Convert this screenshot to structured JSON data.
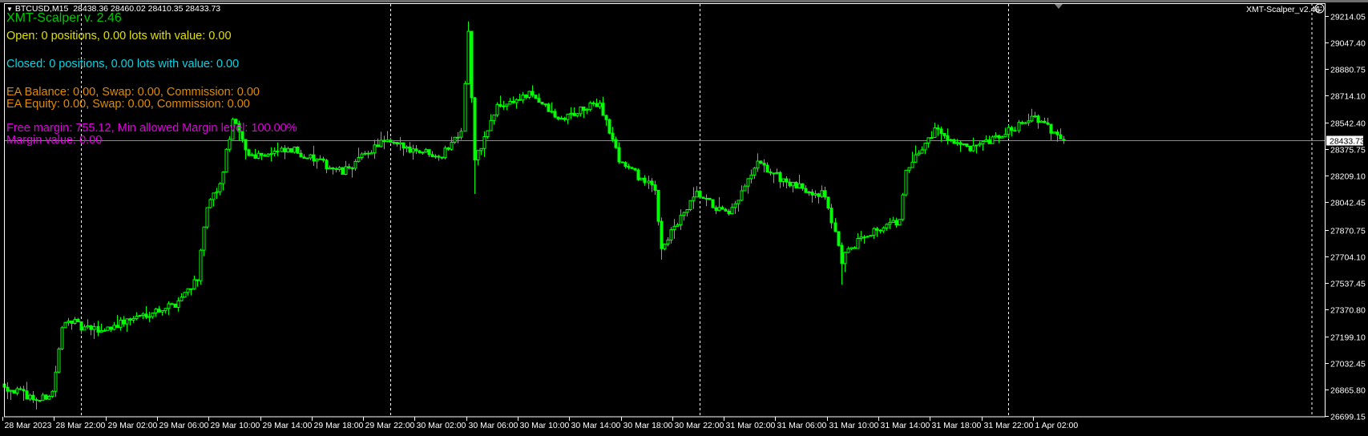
{
  "header": {
    "symbol": "BTCUSD,M15",
    "ohlc": "28438.36 28460.02 28410.35 28433.73",
    "menu_icon": "triangle-down-icon"
  },
  "overlay": {
    "title": "XMT-Scalper v. 2.46",
    "open_line": "Open: 0 positions, 0.00 lots with value: 0.00",
    "closed_line": "Closed: 0 positions, 0.00 lots with value: 0.00",
    "balance_line": "EA Balance: 0.00, Swap: 0.00, Commission: 0.00",
    "equity_line": "EA Equity: 0.00, Swap: 0.00, Commission: 0.00",
    "free_margin_line": "Free margin: 755.12, Min allowed Margin level: 100.00%",
    "margin_value_line": "Margin value: 0.00"
  },
  "expert": {
    "name": "XMT-Scalper_v2.46",
    "status_icon": "smiley-icon"
  },
  "colors": {
    "background": "#000000",
    "candles": "#00ff00",
    "title": "#00c800",
    "open": "#e0e000",
    "closed": "#00d8e8",
    "ea": "#e08c00",
    "margin": "#e000e0",
    "bid_line": "#8090a0"
  },
  "chart_data": {
    "type": "candlestick",
    "timeframe": "M15",
    "price_ticks": [
      "29214.05",
      "29047.40",
      "28880.75",
      "28714.10",
      "28542.40",
      "28375.75",
      "28209.10",
      "28042.45",
      "27870.75",
      "27704.10",
      "27537.45",
      "27370.80",
      "27199.10",
      "27032.45",
      "26865.80",
      "26699.15"
    ],
    "ylim": [
      26699.15,
      29214.05
    ],
    "current_price": "28433.73",
    "time_labels": [
      {
        "t": "2023-03-28 18:00",
        "label": "28 Mar 2023"
      },
      {
        "t": "2023-03-28 22:00",
        "label": "28 Mar 22:00"
      },
      {
        "t": "2023-03-29 02:00",
        "label": "29 Mar 02:00"
      },
      {
        "t": "2023-03-29 06:00",
        "label": "29 Mar 06:00"
      },
      {
        "t": "2023-03-29 10:00",
        "label": "29 Mar 10:00"
      },
      {
        "t": "2023-03-29 14:00",
        "label": "29 Mar 14:00"
      },
      {
        "t": "2023-03-29 18:00",
        "label": "29 Mar 18:00"
      },
      {
        "t": "2023-03-29 22:00",
        "label": "29 Mar 22:00"
      },
      {
        "t": "2023-03-30 02:00",
        "label": "30 Mar 02:00"
      },
      {
        "t": "2023-03-30 06:00",
        "label": "30 Mar 06:00"
      },
      {
        "t": "2023-03-30 10:00",
        "label": "30 Mar 10:00"
      },
      {
        "t": "2023-03-30 14:00",
        "label": "30 Mar 14:00"
      },
      {
        "t": "2023-03-30 18:00",
        "label": "30 Mar 18:00"
      },
      {
        "t": "2023-03-30 22:00",
        "label": "30 Mar 22:00"
      },
      {
        "t": "2023-03-31 02:00",
        "label": "31 Mar 02:00"
      },
      {
        "t": "2023-03-31 06:00",
        "label": "31 Mar 06:00"
      },
      {
        "t": "2023-03-31 10:00",
        "label": "31 Mar 10:00"
      },
      {
        "t": "2023-03-31 14:00",
        "label": "31 Mar 14:00"
      },
      {
        "t": "2023-03-31 18:00",
        "label": "31 Mar 18:00"
      },
      {
        "t": "2023-03-31 22:00",
        "label": "31 Mar 22:00"
      },
      {
        "t": "2023-04-01 02:00",
        "label": "1 Apr 02:00"
      }
    ],
    "period_separators": [
      "2023-03-29 00:00",
      "2023-03-30 00:00",
      "2023-03-31 00:00",
      "2023-04-01 00:00"
    ],
    "close_path": [
      [
        "2023-03-28 18:00",
        26900
      ],
      [
        "2023-03-28 18:15",
        26877
      ],
      [
        "2023-03-28 20:45",
        26795
      ],
      [
        "2023-03-28 21:45",
        26850
      ],
      [
        "2023-03-28 22:30",
        27240
      ],
      [
        "2023-03-28 23:00",
        27320
      ],
      [
        "2023-03-29 00:00",
        27250
      ],
      [
        "2023-03-29 01:30",
        27238
      ],
      [
        "2023-03-29 04:15",
        27321
      ],
      [
        "2023-03-29 07:15",
        27404
      ],
      [
        "2023-03-29 09:00",
        27569
      ],
      [
        "2023-03-29 09:45",
        28014
      ],
      [
        "2023-03-29 10:45",
        28146
      ],
      [
        "2023-03-29 11:45",
        28559
      ],
      [
        "2023-03-29 13:00",
        28339
      ],
      [
        "2023-03-29 16:30",
        28367
      ],
      [
        "2023-03-29 20:15",
        28229
      ],
      [
        "2023-03-29 23:15",
        28422
      ],
      [
        "2023-03-30 04:00",
        28339
      ],
      [
        "2023-03-30 05:30",
        28504
      ],
      [
        "2023-03-30 06:00",
        29109
      ],
      [
        "2023-03-30 06:30",
        28300
      ],
      [
        "2023-03-30 08:15",
        28642
      ],
      [
        "2023-03-30 11:00",
        28724
      ],
      [
        "2023-03-30 13:00",
        28559
      ],
      [
        "2023-03-30 16:15",
        28669
      ],
      [
        "2023-03-30 17:45",
        28312
      ],
      [
        "2023-03-30 20:30",
        28119
      ],
      [
        "2023-03-30 21:00",
        27761
      ],
      [
        "2023-03-30 23:45",
        28091
      ],
      [
        "2023-03-31 02:15",
        27954
      ],
      [
        "2023-03-31 04:30",
        28284
      ],
      [
        "2023-03-31 07:15",
        28146
      ],
      [
        "2023-03-31 09:45",
        28091
      ],
      [
        "2023-03-31 11:00",
        27679
      ],
      [
        "2023-03-31 12:45",
        27844
      ],
      [
        "2023-03-31 15:30",
        27926
      ],
      [
        "2023-03-31 16:00",
        28229
      ],
      [
        "2023-03-31 18:15",
        28504
      ],
      [
        "2023-03-31 21:00",
        28367
      ],
      [
        "2023-03-31 23:15",
        28449
      ],
      [
        "2023-04-01 01:45",
        28587
      ],
      [
        "2023-04-01 04:15",
        28433.73
      ]
    ],
    "last_bar": {
      "open": 28438.36,
      "high": 28460.02,
      "low": 28410.35,
      "close": 28433.73
    }
  }
}
